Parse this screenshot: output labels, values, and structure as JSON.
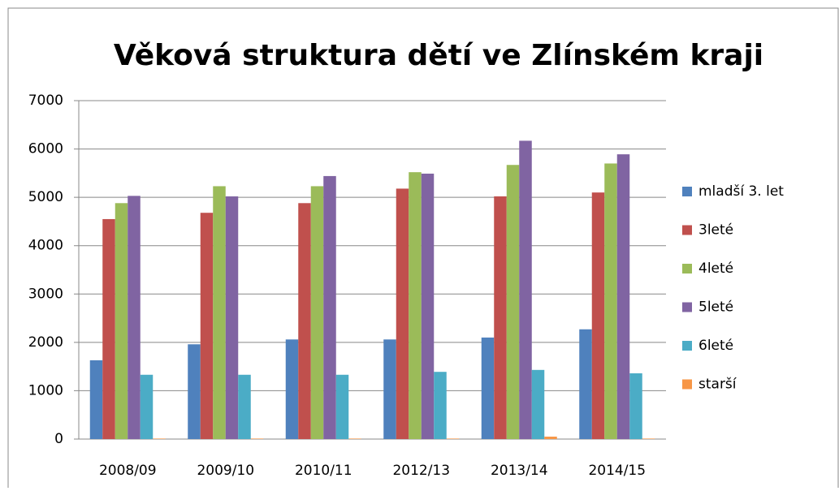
{
  "chart_data": {
    "type": "bar",
    "title": "Věková struktura dětí ve Zlínském kraji",
    "categories": [
      "2008/09",
      "2009/10",
      "2010/11",
      "2012/13",
      "2013/14",
      "2014/15"
    ],
    "series": [
      {
        "name": "mladší 3. let",
        "color": "#4f81bd",
        "values": [
          1630,
          1960,
          2060,
          2060,
          2100,
          2270
        ]
      },
      {
        "name": "3leté",
        "color": "#c0504d",
        "values": [
          4550,
          4680,
          4880,
          5180,
          5020,
          5100
        ]
      },
      {
        "name": "4leté",
        "color": "#9bbb59",
        "values": [
          4880,
          5230,
          5230,
          5520,
          5670,
          5700
        ]
      },
      {
        "name": "5leté",
        "color": "#8064a2",
        "values": [
          5030,
          5020,
          5440,
          5490,
          6170,
          5890
        ]
      },
      {
        "name": "6leté",
        "color": "#4bacc6",
        "values": [
          1330,
          1330,
          1330,
          1390,
          1430,
          1360
        ]
      },
      {
        "name": "starší",
        "color": "#f79646",
        "values": [
          10,
          10,
          10,
          10,
          50,
          10
        ]
      }
    ],
    "ylim": [
      0,
      7000
    ],
    "yticks": [
      0,
      1000,
      2000,
      3000,
      4000,
      5000,
      6000,
      7000
    ],
    "grid": true,
    "legend": "right"
  }
}
